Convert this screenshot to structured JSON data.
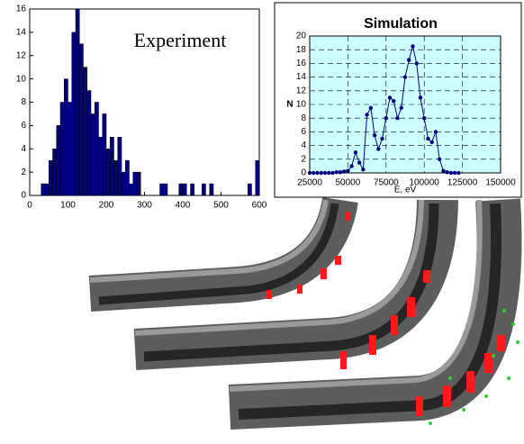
{
  "chart_data": [
    {
      "type": "histogram",
      "title": "Experiment",
      "bins": [
        30,
        40,
        50,
        60,
        70,
        80,
        90,
        100,
        110,
        120,
        130,
        140,
        150,
        160,
        170,
        180,
        190,
        200,
        210,
        220,
        230,
        240,
        250,
        260,
        270,
        280,
        290,
        300,
        310,
        320,
        330,
        340,
        350,
        360,
        370,
        380,
        390,
        400,
        410,
        420,
        430,
        440,
        450,
        460,
        470,
        480,
        490,
        500,
        510,
        520,
        530,
        540,
        550,
        560,
        570,
        580,
        590,
        600
      ],
      "values": [
        1,
        1,
        3,
        4,
        6,
        8,
        10,
        8,
        14,
        16,
        13,
        11,
        9,
        7,
        8,
        5,
        7,
        4,
        5,
        3,
        5,
        2,
        3,
        1,
        2,
        2,
        0,
        0,
        0,
        0,
        0,
        1,
        1,
        0,
        0,
        0,
        1,
        1,
        0,
        1,
        0,
        0,
        1,
        0,
        1,
        0,
        0,
        0,
        0,
        0,
        0,
        0,
        0,
        0,
        1,
        0,
        3
      ],
      "color": "#000080",
      "xlim": [
        0,
        600
      ],
      "xticks": [
        0,
        100,
        200,
        300,
        400,
        500,
        600
      ],
      "ylim": [
        0,
        16
      ],
      "yticks": [
        0,
        2,
        4,
        6,
        8,
        10,
        12,
        14,
        16
      ]
    },
    {
      "type": "line",
      "title": "Simulation",
      "xlabel": "E, eV",
      "ylabel": "N",
      "x": [
        25000,
        27500,
        30000,
        32500,
        35000,
        37500,
        40000,
        42500,
        45000,
        47500,
        50000,
        52500,
        55000,
        57500,
        60000,
        62500,
        65000,
        67500,
        70000,
        72500,
        75000,
        77500,
        80000,
        82500,
        85000,
        87500,
        90000,
        92500,
        95000,
        97500,
        100000,
        102500,
        105000,
        107500,
        110000,
        112500,
        115000,
        117500,
        120000,
        122500
      ],
      "series": [
        {
          "name": "N",
          "color": "#000080",
          "values": [
            0,
            0,
            0,
            0,
            0,
            0,
            0,
            0.1,
            0.1,
            0.2,
            0.3,
            1,
            3,
            1.5,
            0.5,
            8.5,
            9.5,
            5.5,
            3.5,
            5,
            8,
            11,
            10.5,
            8,
            9.5,
            14,
            16.5,
            18.5,
            16,
            11,
            8,
            5,
            4.5,
            6,
            2,
            0.3,
            0.1,
            0,
            0,
            0
          ]
        }
      ],
      "background": "#ccffff",
      "grid": true,
      "xlim": [
        25000,
        150000
      ],
      "xticks": [
        25000,
        50000,
        75000,
        100000,
        125000,
        150000
      ],
      "ylim": [
        0,
        20
      ],
      "yticks": [
        0,
        2,
        4,
        6,
        8,
        10,
        12,
        14,
        16,
        18,
        20
      ]
    }
  ]
}
